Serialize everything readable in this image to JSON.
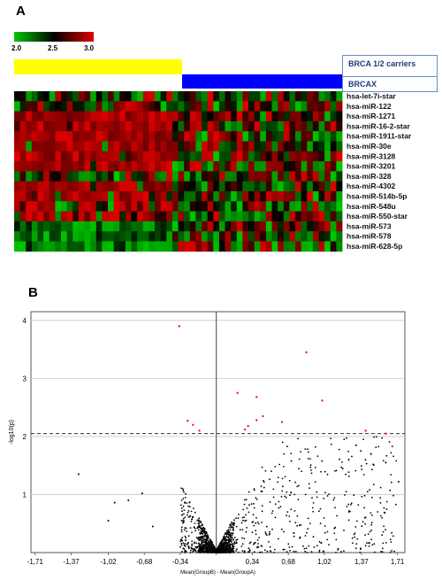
{
  "panels": {
    "a": "A",
    "b": "B"
  },
  "heatmap": {
    "scale_ticks": [
      "2.0",
      "2.5",
      "3.0"
    ],
    "scale_colors": [
      "#00c800",
      "#000000",
      "#e00000"
    ],
    "groups": [
      {
        "label": "BRCA 1/2 carriers",
        "color": "#ffff00"
      },
      {
        "label": "BRCAX",
        "color": "#0000ff"
      }
    ],
    "genes": [
      "hsa-let-7i-star",
      "hsa-miR-122",
      "hsa-miR-1271",
      "hsa-miR-16-2-star",
      "hsa-miR-1911-star",
      "hsa-miR-30e",
      "hsa-miR-3128",
      "hsa-miR-3201",
      "hsa-miR-328",
      "hsa-miR-4302",
      "hsa-miR-514b-5p",
      "hsa-miR-548u",
      "hsa-miR-550-star",
      "hsa-miR-573",
      "hsa-miR-578",
      "hsa-miR-628-5p"
    ]
  },
  "chart_data": {
    "type": "scatter",
    "title": "",
    "xlabel": "Mean(GroupB) - Mean(GroupA)",
    "ylabel": "-log10(p)",
    "x_ticks": [
      "-1,71",
      "-1,37",
      "-1,02",
      "-0,68",
      "-0,34",
      "0",
      "0,34",
      "0,68",
      "1,02",
      "1,37",
      "1,71"
    ],
    "x_tick_values": [
      -1.71,
      -1.37,
      -1.02,
      -0.68,
      -0.34,
      0,
      0.34,
      0.68,
      1.02,
      1.37,
      1.71
    ],
    "y_ticks": [
      "1",
      "2",
      "3",
      "4"
    ],
    "y_tick_values": [
      1,
      2,
      3,
      4
    ],
    "xlim": [
      -1.75,
      1.78
    ],
    "ylim": [
      0,
      4.15
    ],
    "threshold": 2.05,
    "grid": true,
    "significant_points": [
      {
        "x": -0.35,
        "y": 3.9
      },
      {
        "x": 0.85,
        "y": 3.45
      },
      {
        "x": 0.2,
        "y": 2.75
      },
      {
        "x": 0.38,
        "y": 2.68
      },
      {
        "x": 1.0,
        "y": 2.62
      },
      {
        "x": 0.44,
        "y": 2.35
      },
      {
        "x": 0.38,
        "y": 2.28
      },
      {
        "x": 0.62,
        "y": 2.25
      },
      {
        "x": -0.27,
        "y": 2.27
      },
      {
        "x": -0.22,
        "y": 2.2
      },
      {
        "x": 0.3,
        "y": 2.18
      },
      {
        "x": 0.27,
        "y": 2.12
      },
      {
        "x": -0.16,
        "y": 2.1
      },
      {
        "x": 1.41,
        "y": 2.1
      },
      {
        "x": 1.6,
        "y": 2.05
      }
    ],
    "other_points": [
      {
        "x": -1.3,
        "y": 1.35
      },
      {
        "x": -0.7,
        "y": 1.02
      },
      {
        "x": -0.83,
        "y": 0.9
      },
      {
        "x": -0.96,
        "y": 0.86
      },
      {
        "x": -1.02,
        "y": 0.55
      },
      {
        "x": -0.6,
        "y": 0.45
      },
      {
        "x": 1.72,
        "y": 1.22
      },
      {
        "x": 1.6,
        "y": 1.55
      },
      {
        "x": 1.46,
        "y": 1.7
      },
      {
        "x": 1.32,
        "y": 1.85
      },
      {
        "x": 1.25,
        "y": 1.6
      }
    ],
    "point_colors": {
      "significant": "#e02020",
      "other": "#000000"
    }
  }
}
